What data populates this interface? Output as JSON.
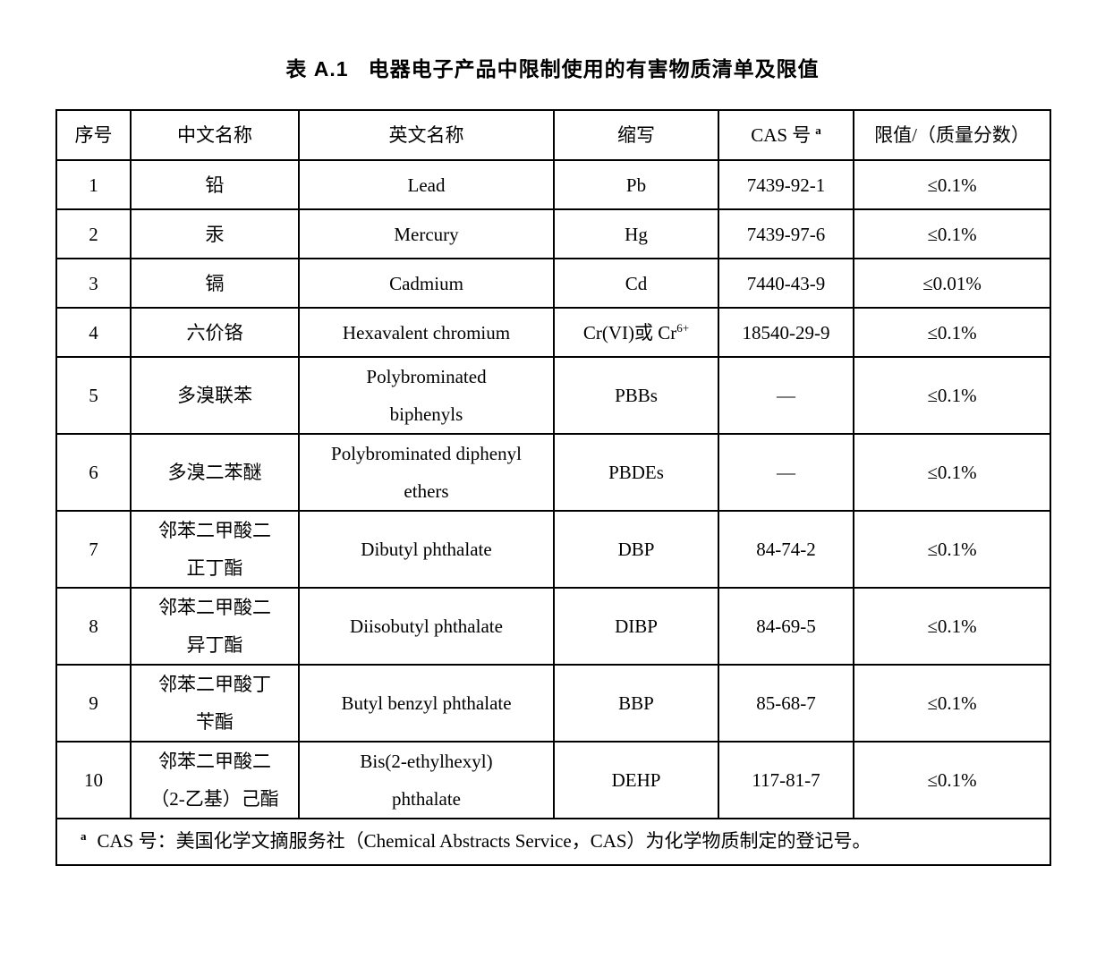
{
  "page": {
    "caption_label": "表 A.1",
    "caption_text": "电器电子产品中限制使用的有害物质清单及限值"
  },
  "table": {
    "headers": [
      "序号",
      "中文名称",
      "英文名称",
      "缩写",
      "CAS 号",
      "限值/（质量分数）"
    ],
    "cas_header_sup": "a",
    "rows": [
      {
        "no": "1",
        "cn": "铅",
        "en": "Lead",
        "abbr": "Pb",
        "abbr_sup": "",
        "cas": "7439-92-1",
        "limit": "≤0.1%"
      },
      {
        "no": "2",
        "cn": "汞",
        "en": "Mercury",
        "abbr": "Hg",
        "abbr_sup": "",
        "cas": "7439-97-6",
        "limit": "≤0.1%"
      },
      {
        "no": "3",
        "cn": "镉",
        "en": "Cadmium",
        "abbr": "Cd",
        "abbr_sup": "",
        "cas": "7440-43-9",
        "limit": "≤0.01%"
      },
      {
        "no": "4",
        "cn": "六价铬",
        "en": "Hexavalent chromium",
        "abbr": "Cr(VI)或 Cr",
        "abbr_sup": "6+",
        "cas": "18540-29-9",
        "limit": "≤0.1%"
      },
      {
        "no": "5",
        "cn": "多溴联苯",
        "en": "Polybrominated\nbiphenyls",
        "abbr": "PBBs",
        "abbr_sup": "",
        "cas": "—",
        "limit": "≤0.1%"
      },
      {
        "no": "6",
        "cn": "多溴二苯醚",
        "en": "Polybrominated diphenyl\nethers",
        "abbr": "PBDEs",
        "abbr_sup": "",
        "cas": "—",
        "limit": "≤0.1%"
      },
      {
        "no": "7",
        "cn": "邻苯二甲酸二\n正丁酯",
        "en": "Dibutyl phthalate",
        "abbr": "DBP",
        "abbr_sup": "",
        "cas": "84-74-2",
        "limit": "≤0.1%"
      },
      {
        "no": "8",
        "cn": "邻苯二甲酸二\n异丁酯",
        "en": "Diisobutyl phthalate",
        "abbr": "DIBP",
        "abbr_sup": "",
        "cas": "84-69-5",
        "limit": "≤0.1%"
      },
      {
        "no": "9",
        "cn": "邻苯二甲酸丁\n苄酯",
        "en": "Butyl benzyl phthalate",
        "abbr": "BBP",
        "abbr_sup": "",
        "cas": "85-68-7",
        "limit": "≤0.1%"
      },
      {
        "no": "10",
        "cn": "邻苯二甲酸二\n（2-乙基）己酯",
        "en": "Bis(2-ethylhexyl)\nphthalate",
        "abbr": "DEHP",
        "abbr_sup": "",
        "cas": "117-81-7",
        "limit": "≤0.1%"
      }
    ],
    "footnote": {
      "marker": "a",
      "text": "CAS 号：美国化学文摘服务社（Chemical Abstracts Service，CAS）为化学物质制定的登记号。"
    }
  }
}
